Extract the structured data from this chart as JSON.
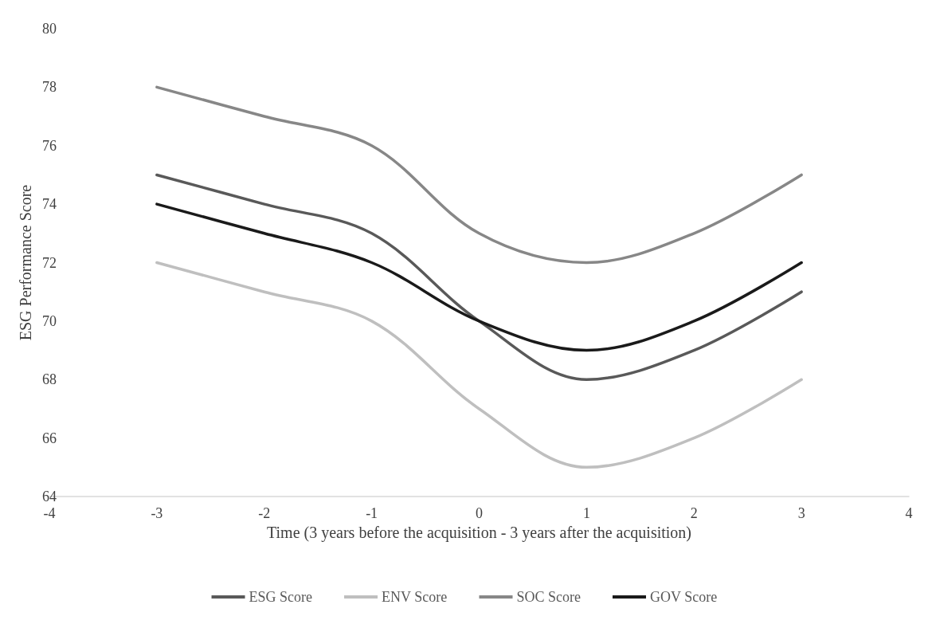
{
  "chart_data": {
    "type": "line",
    "xlabel": "Time (3 years before the acquisition - 3 years after the acquisition)",
    "ylabel": "ESG Performance Score",
    "x": [
      -3,
      -2,
      -1,
      0,
      1,
      2,
      3
    ],
    "xlim": [
      -4,
      4
    ],
    "xticks": [
      -4,
      -3,
      -2,
      -1,
      0,
      1,
      2,
      3,
      4
    ],
    "ylim": [
      64,
      80
    ],
    "yticks": [
      64,
      66,
      68,
      70,
      72,
      74,
      76,
      78,
      80
    ],
    "grid": false,
    "legend": "bottom",
    "marker": "none",
    "line_style": "solid",
    "series": [
      {
        "name": "ESG Score",
        "color": "#595959",
        "values": [
          75,
          74,
          73,
          70,
          68,
          69,
          71
        ]
      },
      {
        "name": "ENV Score",
        "color": "#bfbfbf",
        "values": [
          72,
          71,
          70,
          67,
          65,
          66,
          68
        ]
      },
      {
        "name": "SOC Score",
        "color": "#878787",
        "values": [
          78,
          77,
          76,
          73,
          72,
          73,
          75
        ]
      },
      {
        "name": "GOV Score",
        "color": "#1a1a1a",
        "values": [
          74,
          73,
          72,
          70,
          69,
          70,
          72
        ]
      }
    ]
  }
}
